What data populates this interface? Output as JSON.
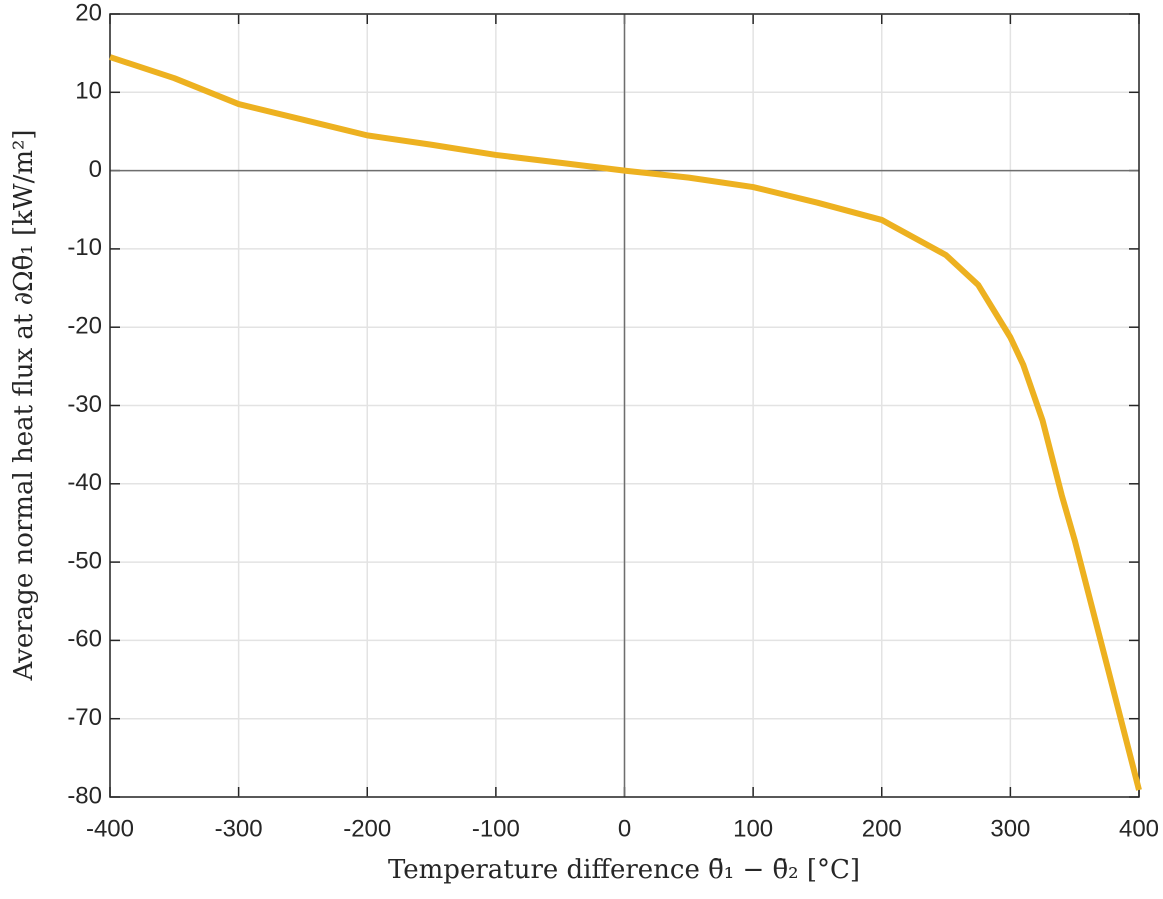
{
  "chart_data": {
    "type": "line",
    "x_label": "Temperature difference θ̄₁ − θ̄₂ [°C]",
    "y_label": "Average normal heat flux at ∂Ωθ̄₁ [kW/m²]",
    "x": [
      -400,
      -350,
      -300,
      -250,
      -200,
      -150,
      -100,
      -50,
      0,
      50,
      100,
      150,
      200,
      250,
      275,
      300,
      310,
      325,
      340,
      350,
      375,
      400
    ],
    "values": [
      14.5,
      11.8,
      8.5,
      6.5,
      4.5,
      3.3,
      2.0,
      1.0,
      0,
      -0.9,
      -2.1,
      -4.1,
      -6.3,
      -10.8,
      -14.6,
      -21.3,
      -24.8,
      -31.9,
      -41.5,
      -47.2,
      -63.1,
      -79.1
    ],
    "color": "#EDB120",
    "xlim": [
      -400,
      400
    ],
    "xticks": [
      -400,
      -300,
      -200,
      -100,
      0,
      100,
      200,
      300,
      400
    ],
    "ylim": [
      -80,
      20
    ],
    "yticks": [
      20,
      10,
      0,
      -10,
      -20,
      -30,
      -40,
      -50,
      -60,
      -70,
      -80
    ],
    "grid": true,
    "zero_lines": true
  }
}
